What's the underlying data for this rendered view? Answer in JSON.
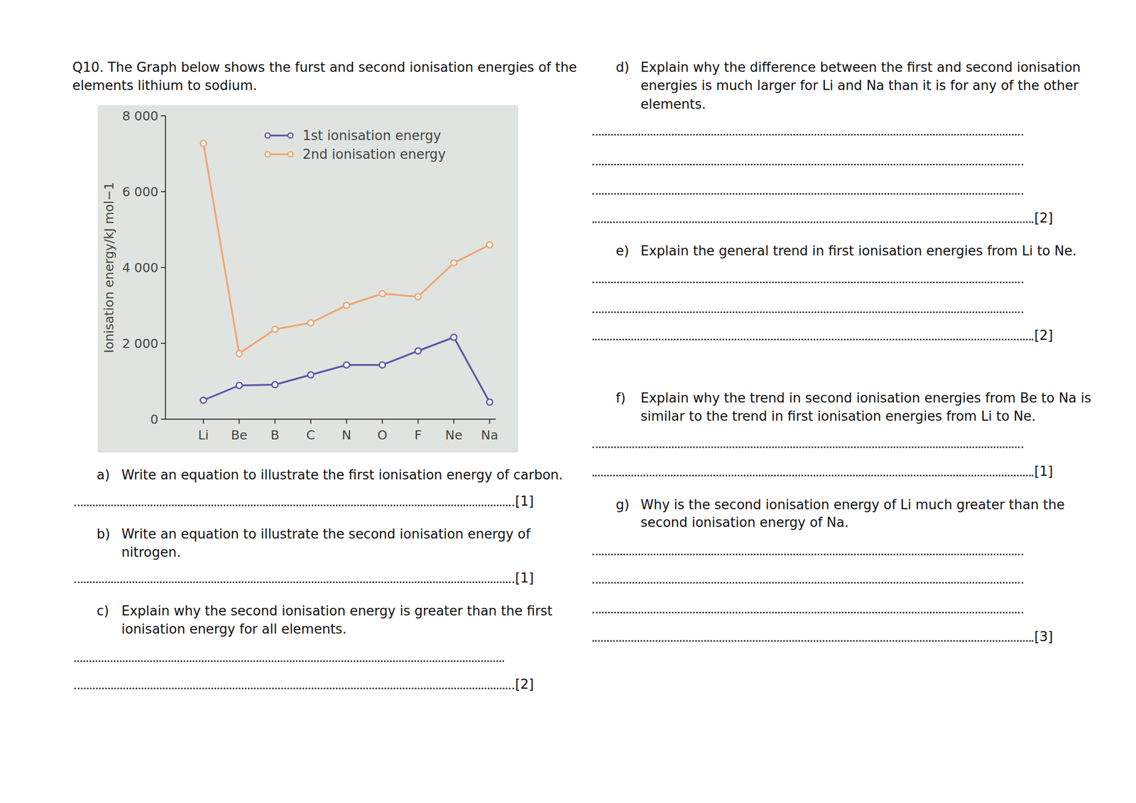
{
  "chart_data": {
    "type": "line",
    "categories": [
      "Li",
      "Be",
      "B",
      "C",
      "N",
      "O",
      "F",
      "Ne",
      "Na"
    ],
    "y_label": "Ionisation energy/kJ mol−1",
    "ylim": [
      0,
      8000
    ],
    "yticks": [
      0,
      {
        "value": 2000,
        "label": "2 000"
      },
      {
        "value": 4000,
        "label": "4 000"
      },
      {
        "value": 6000,
        "label": "6 000"
      },
      {
        "value": 8000,
        "label": "8 000"
      }
    ],
    "legend": "top",
    "series": [
      {
        "name": "1st ionisation energy",
        "color": "#5a54a6",
        "marker": "circle",
        "values": [
          500,
          890,
          910,
          1170,
          1430,
          1430,
          1800,
          2160,
          450
        ]
      },
      {
        "name": "2nd ionisation energy",
        "color": "#f2a46c",
        "marker": "circle",
        "values": [
          7270,
          1730,
          2370,
          2540,
          3000,
          3310,
          3230,
          4120,
          4600
        ]
      }
    ]
  },
  "document": {
    "question": {
      "text": [
        "Q10. The Graph below shows the furst and second ionisation energies of the",
        "elements lithium to sodium."
      ]
    },
    "parts": [
      {
        "label": "a)",
        "text": [
          "Write an equation to illustrate the first ionisation energy of carbon."
        ],
        "marks": "[1]"
      },
      {
        "label": "b)",
        "text": [
          "Write an equation to illustrate the second ionisation energy of",
          "nitrogen."
        ],
        "marks": "[1]"
      },
      {
        "label": "c)",
        "text": [
          "Explain why the second ionisation energy is greater than the first",
          "ionisation energy for all elements."
        ],
        "marks": "[2]"
      },
      {
        "label": "d)",
        "text": [
          "Explain why the difference between the first and second ionisation",
          "energies is much larger for Li and Na than it is for any of the other",
          "elements."
        ],
        "marks": "[2]"
      },
      {
        "label": "e)",
        "text": [
          "Explain the general trend in first ionisation energies from Li to Ne."
        ],
        "marks": "[2]"
      },
      {
        "label": "f)",
        "text": [
          "Explain why the trend in second ionisation energies from Be to Na is",
          "similar to the trend in first ionisation energies from Li to Ne."
        ],
        "marks": "[1]"
      },
      {
        "label": "g)",
        "text": [
          "Why is the second ionisation energy of Li much greater than the",
          "second ionisation energy of Na."
        ],
        "marks": "[3]"
      }
    ]
  }
}
